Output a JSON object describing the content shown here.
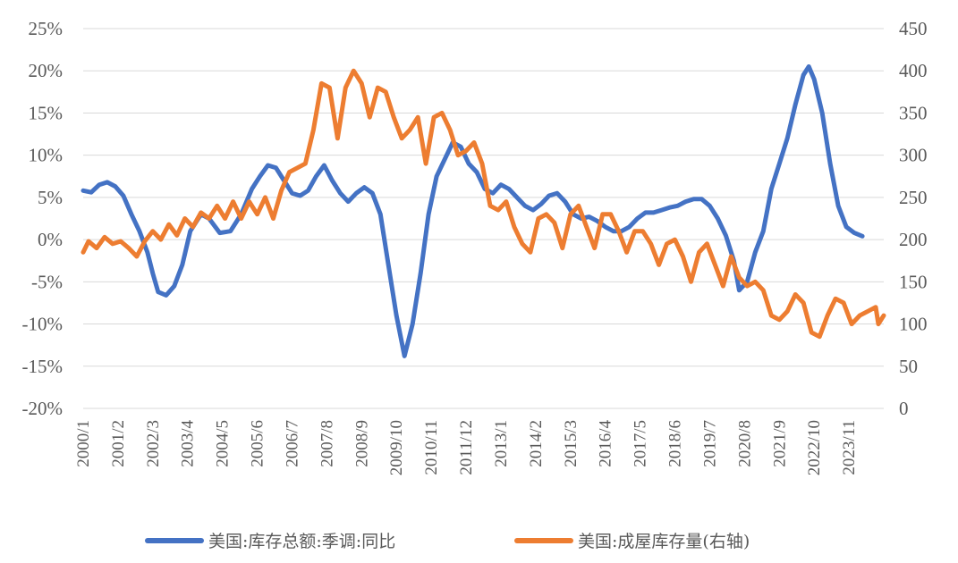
{
  "chart_data": {
    "type": "line",
    "title": "",
    "xlabel": "",
    "ylabel": "",
    "x_tick_labels": [
      "2000/1",
      "2001/2",
      "2002/3",
      "2003/4",
      "2004/5",
      "2005/6",
      "2006/7",
      "2007/8",
      "2008/9",
      "2009/10",
      "2010/11",
      "2011/12",
      "2013/1",
      "2014/2",
      "2015/3",
      "2016/4",
      "2017/5",
      "2018/6",
      "2019/7",
      "2020/8",
      "2021/9",
      "2022/10",
      "2023/11"
    ],
    "y_left": {
      "ticks": [
        "25%",
        "20%",
        "15%",
        "10%",
        "5%",
        "0%",
        "-5%",
        "-10%",
        "-15%",
        "-20%"
      ],
      "ylim": [
        -20,
        25
      ]
    },
    "y_right": {
      "ticks": [
        "450",
        "400",
        "350",
        "300",
        "250",
        "200",
        "150",
        "100",
        "50",
        "0"
      ],
      "ylim": [
        0,
        450
      ]
    },
    "grid": true,
    "legend_position": "bottom",
    "series": [
      {
        "name": "美国:库存总额:季调:同比",
        "axis": "left",
        "color": "#4472c4",
        "points": [
          [
            "2000/01",
            5.8
          ],
          [
            "2000/04",
            5.6
          ],
          [
            "2000/07",
            6.5
          ],
          [
            "2000/10",
            6.8
          ],
          [
            "2001/01",
            6.3
          ],
          [
            "2001/04",
            5.2
          ],
          [
            "2001/07",
            3.0
          ],
          [
            "2001/10",
            1.0
          ],
          [
            "2002/01",
            -1.5
          ],
          [
            "2002/03",
            -4.0
          ],
          [
            "2002/05",
            -6.2
          ],
          [
            "2002/08",
            -6.6
          ],
          [
            "2002/11",
            -5.5
          ],
          [
            "2003/02",
            -3.0
          ],
          [
            "2003/05",
            1.0
          ],
          [
            "2003/09",
            3.0
          ],
          [
            "2003/12",
            2.5
          ],
          [
            "2004/04",
            0.8
          ],
          [
            "2004/08",
            1.0
          ],
          [
            "2004/12",
            3.0
          ],
          [
            "2005/04",
            6.0
          ],
          [
            "2005/07",
            7.5
          ],
          [
            "2005/10",
            8.8
          ],
          [
            "2006/01",
            8.5
          ],
          [
            "2006/04",
            7.0
          ],
          [
            "2006/07",
            5.5
          ],
          [
            "2006/10",
            5.2
          ],
          [
            "2007/01",
            5.8
          ],
          [
            "2007/04",
            7.5
          ],
          [
            "2007/07",
            8.8
          ],
          [
            "2007/10",
            7.0
          ],
          [
            "2008/01",
            5.5
          ],
          [
            "2008/04",
            4.5
          ],
          [
            "2008/07",
            5.5
          ],
          [
            "2008/10",
            6.2
          ],
          [
            "2009/01",
            5.5
          ],
          [
            "2009/04",
            3.0
          ],
          [
            "2009/07",
            -3.0
          ],
          [
            "2009/10",
            -9.0
          ],
          [
            "2010/01",
            -13.8
          ],
          [
            "2010/04",
            -10.0
          ],
          [
            "2010/07",
            -4.0
          ],
          [
            "2010/10",
            3.0
          ],
          [
            "2011/01",
            7.5
          ],
          [
            "2011/04",
            9.5
          ],
          [
            "2011/07",
            11.5
          ],
          [
            "2011/10",
            11.0
          ],
          [
            "2012/01",
            9.0
          ],
          [
            "2012/04",
            8.0
          ],
          [
            "2012/07",
            6.0
          ],
          [
            "2012/10",
            5.5
          ],
          [
            "2013/01",
            6.5
          ],
          [
            "2013/04",
            6.0
          ],
          [
            "2013/07",
            5.0
          ],
          [
            "2013/10",
            4.0
          ],
          [
            "2014/01",
            3.5
          ],
          [
            "2014/04",
            4.2
          ],
          [
            "2014/07",
            5.2
          ],
          [
            "2014/10",
            5.5
          ],
          [
            "2015/01",
            4.5
          ],
          [
            "2015/04",
            3.0
          ],
          [
            "2015/07",
            2.5
          ],
          [
            "2015/10",
            2.7
          ],
          [
            "2016/01",
            2.2
          ],
          [
            "2016/04",
            1.5
          ],
          [
            "2016/07",
            1.0
          ],
          [
            "2016/10",
            1.0
          ],
          [
            "2017/01",
            1.5
          ],
          [
            "2017/04",
            2.5
          ],
          [
            "2017/07",
            3.2
          ],
          [
            "2017/10",
            3.2
          ],
          [
            "2018/01",
            3.5
          ],
          [
            "2018/04",
            3.8
          ],
          [
            "2018/07",
            4.0
          ],
          [
            "2018/10",
            4.5
          ],
          [
            "2019/01",
            4.8
          ],
          [
            "2019/04",
            4.8
          ],
          [
            "2019/07",
            4.0
          ],
          [
            "2019/10",
            2.5
          ],
          [
            "2020/01",
            0.5
          ],
          [
            "2020/04",
            -2.5
          ],
          [
            "2020/06",
            -6.0
          ],
          [
            "2020/09",
            -5.0
          ],
          [
            "2020/12",
            -1.5
          ],
          [
            "2021/03",
            1.0
          ],
          [
            "2021/06",
            6.0
          ],
          [
            "2021/09",
            9.0
          ],
          [
            "2021/12",
            12.0
          ],
          [
            "2022/03",
            16.0
          ],
          [
            "2022/06",
            19.5
          ],
          [
            "2022/08",
            20.5
          ],
          [
            "2022/10",
            19.0
          ],
          [
            "2023/01",
            15.0
          ],
          [
            "2023/04",
            9.0
          ],
          [
            "2023/07",
            4.0
          ],
          [
            "2023/10",
            1.5
          ],
          [
            "2024/01",
            0.8
          ],
          [
            "2024/04",
            0.4
          ]
        ]
      },
      {
        "name": "美国:成屋库存量(右轴)",
        "axis": "right",
        "color": "#ed7d31",
        "points": [
          [
            "2000/01",
            185
          ],
          [
            "2000/03",
            198
          ],
          [
            "2000/06",
            190
          ],
          [
            "2000/09",
            203
          ],
          [
            "2000/12",
            195
          ],
          [
            "2001/03",
            198
          ],
          [
            "2001/06",
            190
          ],
          [
            "2001/09",
            180
          ],
          [
            "2001/12",
            198
          ],
          [
            "2002/03",
            210
          ],
          [
            "2002/06",
            200
          ],
          [
            "2002/09",
            218
          ],
          [
            "2002/12",
            205
          ],
          [
            "2003/03",
            225
          ],
          [
            "2003/06",
            215
          ],
          [
            "2003/09",
            232
          ],
          [
            "2003/12",
            225
          ],
          [
            "2004/03",
            240
          ],
          [
            "2004/06",
            225
          ],
          [
            "2004/09",
            245
          ],
          [
            "2004/12",
            225
          ],
          [
            "2005/03",
            245
          ],
          [
            "2005/06",
            230
          ],
          [
            "2005/09",
            250
          ],
          [
            "2005/12",
            225
          ],
          [
            "2006/03",
            258
          ],
          [
            "2006/06",
            280
          ],
          [
            "2006/09",
            285
          ],
          [
            "2006/12",
            290
          ],
          [
            "2007/03",
            330
          ],
          [
            "2007/06",
            385
          ],
          [
            "2007/09",
            380
          ],
          [
            "2007/12",
            320
          ],
          [
            "2008/03",
            380
          ],
          [
            "2008/06",
            400
          ],
          [
            "2008/09",
            385
          ],
          [
            "2008/12",
            345
          ],
          [
            "2009/03",
            380
          ],
          [
            "2009/06",
            375
          ],
          [
            "2009/09",
            345
          ],
          [
            "2009/12",
            320
          ],
          [
            "2010/03",
            330
          ],
          [
            "2010/06",
            345
          ],
          [
            "2010/09",
            290
          ],
          [
            "2010/12",
            345
          ],
          [
            "2011/03",
            350
          ],
          [
            "2011/06",
            330
          ],
          [
            "2011/09",
            300
          ],
          [
            "2011/12",
            305
          ],
          [
            "2012/03",
            315
          ],
          [
            "2012/06",
            290
          ],
          [
            "2012/09",
            240
          ],
          [
            "2012/12",
            235
          ],
          [
            "2013/03",
            245
          ],
          [
            "2013/06",
            215
          ],
          [
            "2013/09",
            195
          ],
          [
            "2013/12",
            185
          ],
          [
            "2014/03",
            225
          ],
          [
            "2014/06",
            230
          ],
          [
            "2014/09",
            220
          ],
          [
            "2014/12",
            190
          ],
          [
            "2015/03",
            230
          ],
          [
            "2015/06",
            240
          ],
          [
            "2015/09",
            215
          ],
          [
            "2015/12",
            190
          ],
          [
            "2016/03",
            230
          ],
          [
            "2016/06",
            230
          ],
          [
            "2016/09",
            210
          ],
          [
            "2016/12",
            185
          ],
          [
            "2017/03",
            210
          ],
          [
            "2017/06",
            210
          ],
          [
            "2017/09",
            195
          ],
          [
            "2017/12",
            170
          ],
          [
            "2018/03",
            195
          ],
          [
            "2018/06",
            200
          ],
          [
            "2018/09",
            180
          ],
          [
            "2018/12",
            150
          ],
          [
            "2019/03",
            185
          ],
          [
            "2019/06",
            195
          ],
          [
            "2019/09",
            170
          ],
          [
            "2019/12",
            145
          ],
          [
            "2020/03",
            180
          ],
          [
            "2020/06",
            155
          ],
          [
            "2020/09",
            145
          ],
          [
            "2020/12",
            150
          ],
          [
            "2021/03",
            140
          ],
          [
            "2021/06",
            110
          ],
          [
            "2021/09",
            105
          ],
          [
            "2021/12",
            115
          ],
          [
            "2022/03",
            135
          ],
          [
            "2022/06",
            125
          ],
          [
            "2022/09",
            90
          ],
          [
            "2022/12",
            85
          ],
          [
            "2023/03",
            110
          ],
          [
            "2023/06",
            130
          ],
          [
            "2023/09",
            125
          ],
          [
            "2023/12",
            100
          ],
          [
            "2024/03",
            110
          ],
          [
            "2024/06",
            115
          ],
          [
            "2024/09",
            120
          ],
          [
            "2024/10",
            100
          ],
          [
            "2024/12",
            110
          ]
        ]
      }
    ]
  }
}
